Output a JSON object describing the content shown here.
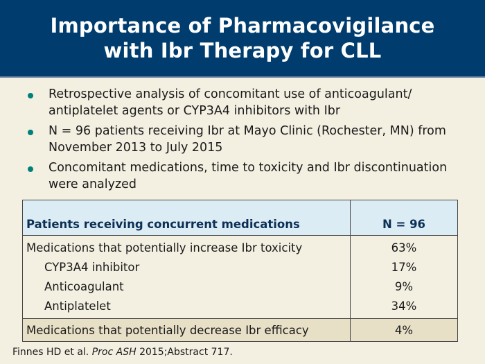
{
  "header": {
    "title_line1": "Importance of Pharmacovigilance",
    "title_line2": "with Ibr Therapy for CLL",
    "background_color": "#003d6e"
  },
  "bullets": [
    {
      "icon": "bullet-dot",
      "text": "Retrospective analysis of concomitant use of anticoagulant/ antiplatelet agents or CYP3A4 inhibitors with Ibr"
    },
    {
      "icon": "bullet-dot",
      "text": "N = 96 patients receiving Ibr at Mayo Clinic (Rochester, MN) from November 2013 to July 2015"
    },
    {
      "icon": "bullet-dot",
      "text": "Concomitant medications, time to toxicity and Ibr discontinuation were analyzed"
    }
  ],
  "table": {
    "headers": [
      "Patients receiving concurrent medications",
      "N = 96"
    ],
    "rows": [
      {
        "label": "Medications that potentially increase Ibr toxicity",
        "value": "63%"
      },
      {
        "label": "CYP3A4 inhibitor",
        "value": "17%"
      },
      {
        "label": "Anticoagulant",
        "value": "9%"
      },
      {
        "label": "Antiplatelet",
        "value": "34%"
      },
      {
        "label": "Medications that potentially decrease Ibr efficacy",
        "value": "4%"
      }
    ]
  },
  "citation": {
    "authors": "Finnes HD et al. ",
    "journal": "Proc ASH",
    "details": " 2015;Abstract 717."
  }
}
